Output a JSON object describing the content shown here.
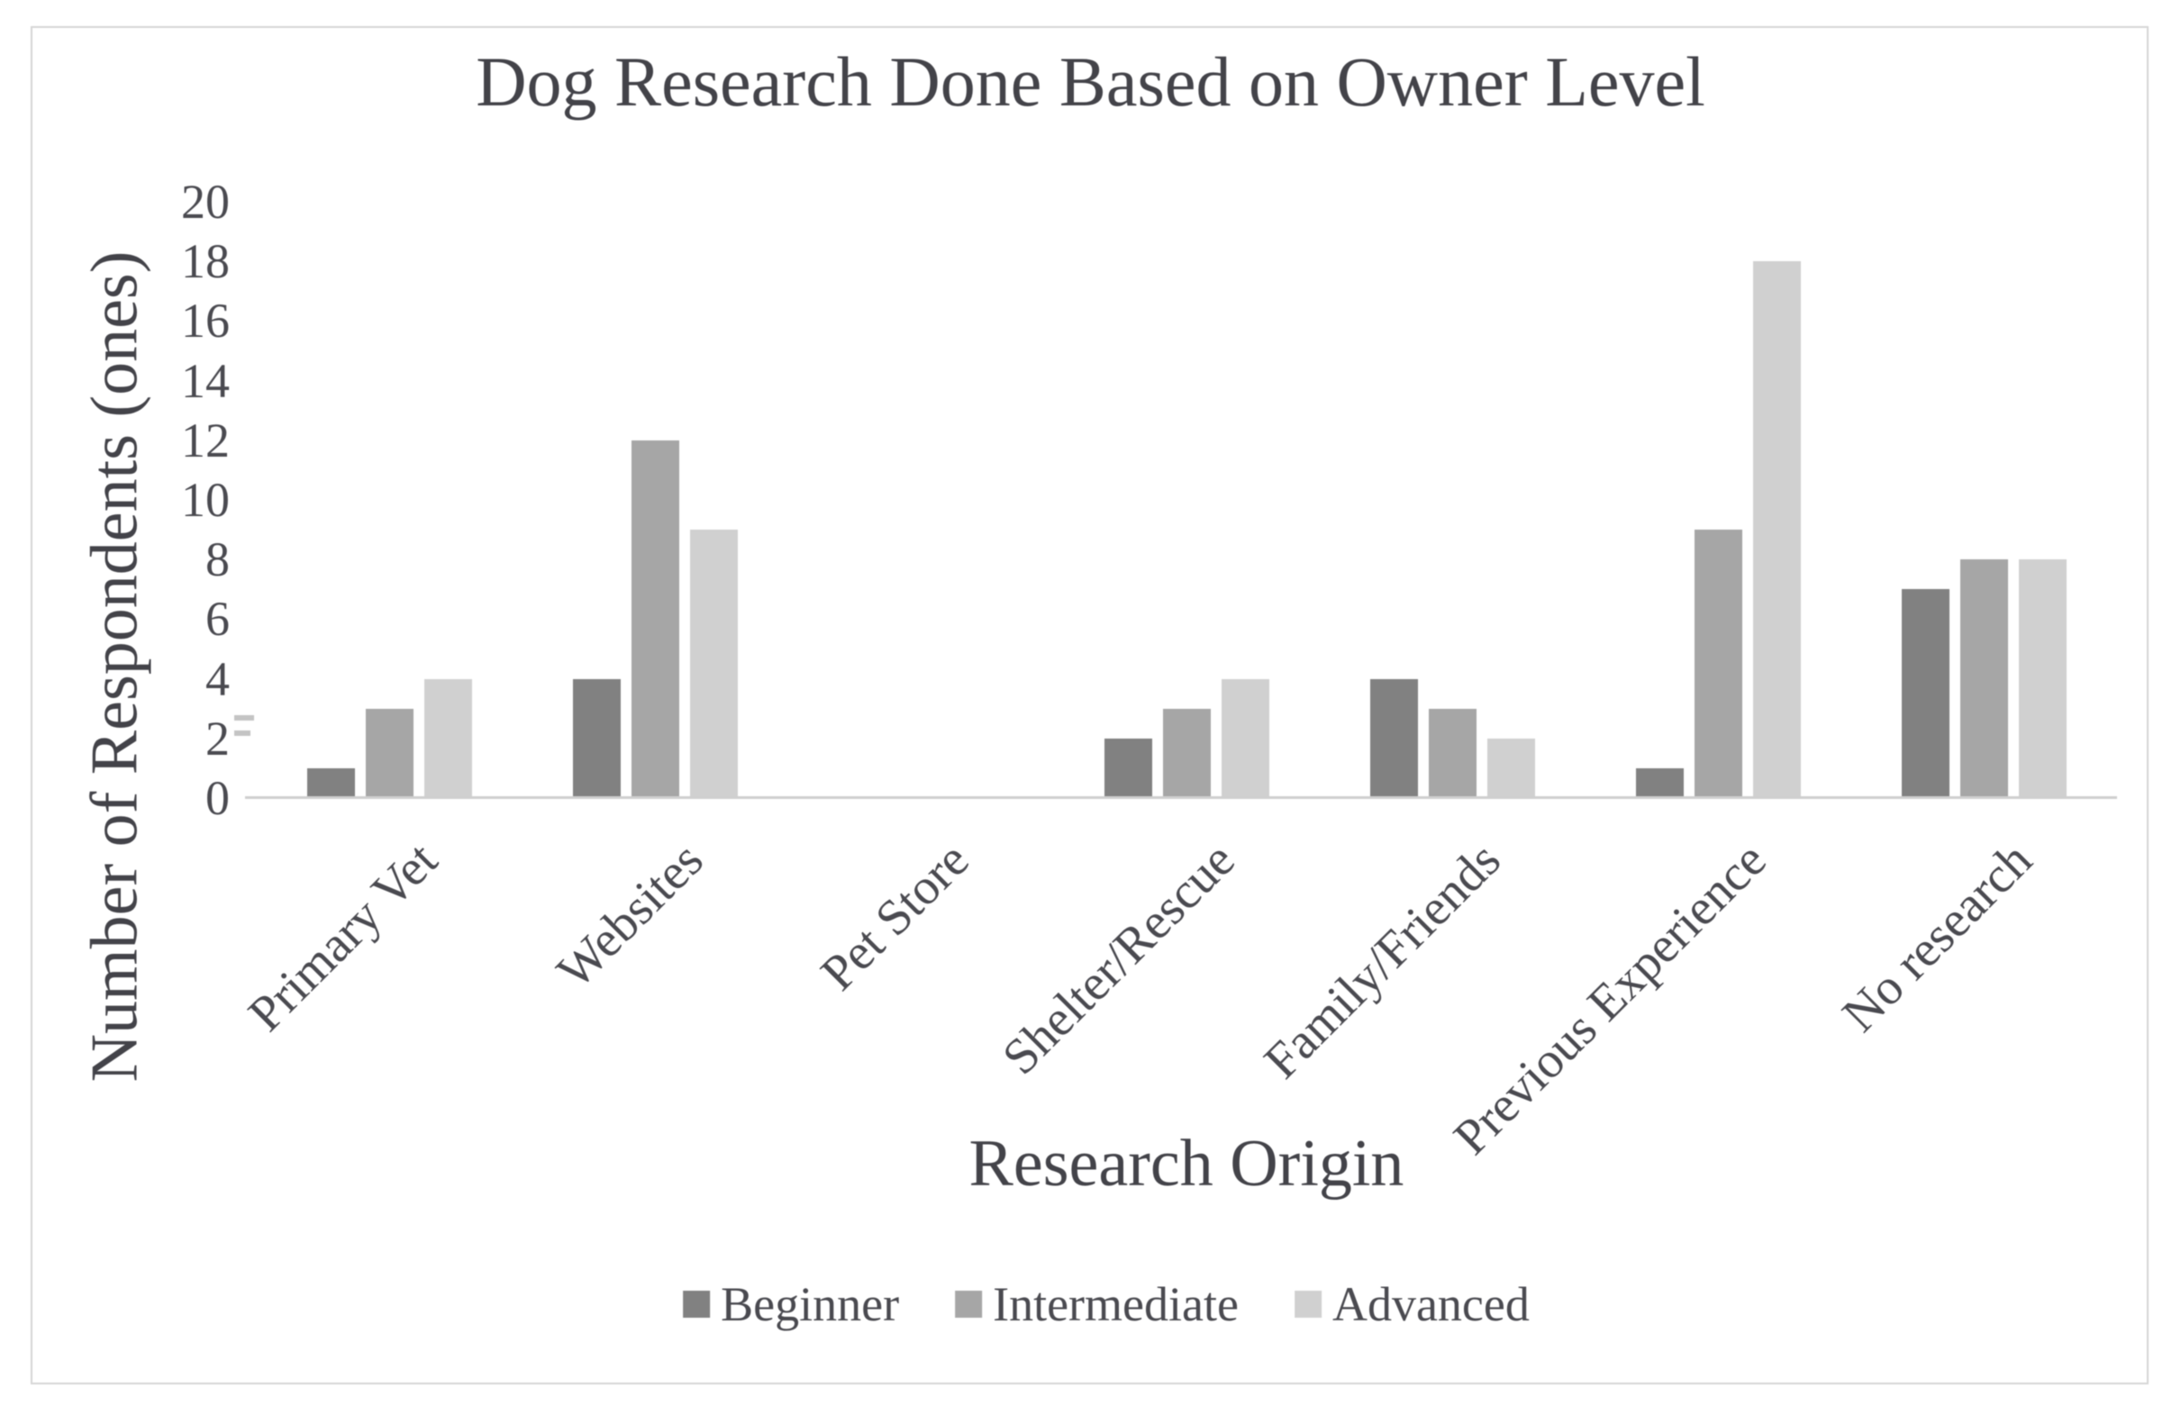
{
  "chart_data": {
    "type": "bar",
    "title": "Dog Research Done Based on Owner Level",
    "xlabel": "Research Origin",
    "ylabel": "Number of Respondents (ones)",
    "categories": [
      "Primary Vet",
      "Websites",
      "Pet Store",
      "Shelter/Rescue",
      "Family/Friends",
      "Previous Experience",
      "No research"
    ],
    "series": [
      {
        "name": "Beginner",
        "color": "#818181",
        "values": [
          1,
          4,
          0,
          2,
          4,
          1,
          7
        ]
      },
      {
        "name": "Intermediate",
        "color": "#a6a6a6",
        "values": [
          3,
          12,
          0,
          3,
          3,
          9,
          8
        ]
      },
      {
        "name": "Advanced",
        "color": "#d0d0d0",
        "values": [
          4,
          9,
          0,
          4,
          2,
          18,
          8
        ]
      }
    ],
    "ylim": [
      0,
      20
    ],
    "yticks": [
      20,
      18,
      16,
      14,
      12,
      10,
      8,
      6,
      4,
      2,
      0
    ],
    "grid": false,
    "legend_position": "bottom",
    "axis_line_color": "#cfcfcf"
  }
}
